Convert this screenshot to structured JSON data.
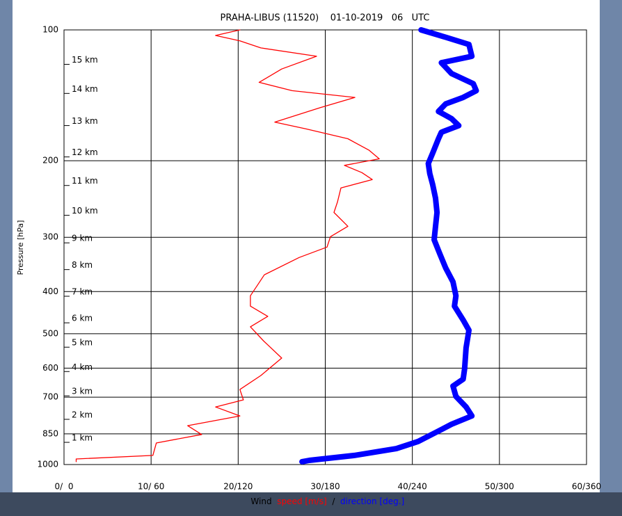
{
  "chart_data": {
    "type": "profile",
    "title": "PRAHA-LIBUS (11520)    01-10-2019   06   UTC",
    "ylabel": "Pressure [hPa]",
    "xlabel": "Wind",
    "xlabel_separator": "/",
    "ylog": true,
    "yinvert": true,
    "grid": true,
    "ylim": [
      100,
      1000
    ],
    "yticks": [
      100,
      200,
      300,
      400,
      500,
      600,
      700,
      850,
      1000
    ],
    "xlim": [
      0,
      60
    ],
    "x2lim": [
      0,
      360
    ],
    "xticks": [
      {
        "value": 0,
        "label": "0/  0"
      },
      {
        "value": 10,
        "label": "10/ 60"
      },
      {
        "value": 20,
        "label": "20/120"
      },
      {
        "value": 30,
        "label": "30/180"
      },
      {
        "value": 40,
        "label": "40/240"
      },
      {
        "value": 50,
        "label": "50/300"
      },
      {
        "value": 60,
        "label": "60/360"
      }
    ],
    "height_labels": [
      {
        "pressure": 120,
        "label": "15 km"
      },
      {
        "pressure": 140,
        "label": "14 km"
      },
      {
        "pressure": 166,
        "label": "13 km"
      },
      {
        "pressure": 196,
        "label": "12 km"
      },
      {
        "pressure": 228,
        "label": "11 km"
      },
      {
        "pressure": 267,
        "label": "10 km"
      },
      {
        "pressure": 309,
        "label": "9 km"
      },
      {
        "pressure": 356,
        "label": "8 km"
      },
      {
        "pressure": 410,
        "label": "7 km"
      },
      {
        "pressure": 472,
        "label": "6 km"
      },
      {
        "pressure": 537,
        "label": "5 km"
      },
      {
        "pressure": 611,
        "label": "4 km"
      },
      {
        "pressure": 695,
        "label": "3 km"
      },
      {
        "pressure": 787,
        "label": "2 km"
      },
      {
        "pressure": 889,
        "label": "1 km"
      }
    ],
    "series": [
      {
        "name": "speed",
        "unit": "[m/s]",
        "color": "#ff0000",
        "axis": "x",
        "x": [
          20.2,
          17.4,
          20.2,
          22.6,
          29.0,
          25.0,
          22.4,
          26.2,
          33.4,
          29.4,
          24.2,
          27.8,
          32.6,
          35.0,
          36.2,
          32.2,
          34.2,
          35.4,
          31.8,
          31.4,
          31.0,
          32.6,
          30.6,
          30.2,
          27.0,
          23.0,
          22.2,
          21.4,
          21.4,
          23.4,
          21.4,
          22.9,
          25.0,
          22.6,
          20.2,
          20.6,
          17.4,
          20.2,
          14.2,
          15.8,
          10.6,
          10.2,
          1.4,
          1.4
        ],
        "y": [
          100,
          103,
          106,
          110,
          115,
          123,
          132,
          138,
          143,
          151,
          163,
          169,
          178,
          189,
          198,
          205,
          213,
          221,
          231,
          249,
          263,
          283,
          299,
          316,
          334,
          366,
          387,
          409,
          432,
          456,
          482,
          519,
          569,
          624,
          672,
          710,
          737,
          773,
          814,
          853,
          892,
          953,
          971,
          985
        ]
      },
      {
        "name": "direction",
        "unit": "[deg.]",
        "color": "#0000ff",
        "axis": "x2",
        "x": [
          246,
          263,
          279,
          281,
          260,
          267,
          282,
          284,
          275,
          263,
          258,
          267,
          272,
          260,
          258,
          254,
          251,
          252,
          254,
          256,
          257,
          256,
          255,
          259,
          263,
          268,
          270,
          269,
          275,
          279,
          277,
          276,
          275,
          268,
          270,
          277,
          281,
          267,
          256,
          244,
          229,
          200,
          169,
          164
        ],
        "y": [
          100,
          104,
          108,
          115,
          119,
          126,
          133,
          138,
          143,
          148,
          154,
          160,
          166,
          172,
          178,
          192,
          203,
          214,
          227,
          244,
          263,
          283,
          304,
          328,
          353,
          380,
          409,
          432,
          465,
          491,
          539,
          602,
          636,
          660,
          697,
          737,
          773,
          808,
          844,
          885,
          919,
          953,
          978,
          985
        ]
      }
    ]
  }
}
